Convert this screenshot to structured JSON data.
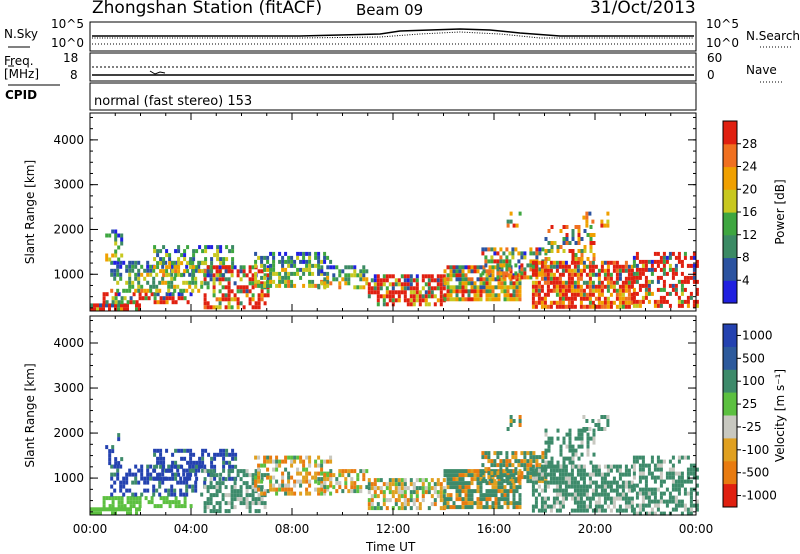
{
  "header": {
    "title": "Zhongshan Station (fitACF)",
    "beam": "Beam 09",
    "date": "31/Oct/2013"
  },
  "top_panels": {
    "nsky_label": "N.Sky",
    "nsearch_label": "N.Search",
    "noise_ticks": [
      "10^5",
      "10^0"
    ],
    "freq_label": "Freq.",
    "freq_unit": "[MHz]",
    "freq_ticks": [
      "18",
      "8"
    ],
    "nave_label": "Nave",
    "nave_ticks": [
      "60",
      "0"
    ],
    "cpid_label": "CPID",
    "cpid_text": "normal (fast stereo) 153"
  },
  "colors": {
    "power_scale": [
      "#2020e0",
      "#2b53a0",
      "#3b8a64",
      "#3ea640",
      "#c8c820",
      "#f0a000",
      "#f07020",
      "#e02010"
    ],
    "velocity_scale": [
      "#2442b0",
      "#2d5a9c",
      "#3d8a6a",
      "#5cc040",
      "#c8c8c0",
      "#e0a020",
      "#e87b10",
      "#e02010"
    ]
  },
  "chart_data": [
    {
      "type": "heatmap",
      "name": "power",
      "ylabel": "Slant Range [km]",
      "xlabel": "Time UT",
      "x_ticks": [
        "00:00",
        "04:00",
        "08:00",
        "12:00",
        "16:00",
        "20:00",
        "00:00"
      ],
      "y_ticks": [
        1000,
        2000,
        3000,
        4000
      ],
      "ylim": [
        180,
        4600
      ],
      "xlim": [
        0,
        24
      ],
      "colorbar_label": "Power [dB]",
      "colorbar_ticks": [
        "4",
        "8",
        "12",
        "16",
        "20",
        "24",
        "28"
      ],
      "colorbar_range": [
        0,
        30
      ]
    },
    {
      "type": "heatmap",
      "name": "velocity",
      "ylabel": "Slant Range [km]",
      "xlabel": "Time UT",
      "x_ticks": [
        "00:00",
        "04:00",
        "08:00",
        "12:00",
        "16:00",
        "20:00",
        "00:00"
      ],
      "y_ticks": [
        1000,
        2000,
        3000,
        4000
      ],
      "ylim": [
        180,
        4600
      ],
      "xlim": [
        0,
        24
      ],
      "colorbar_label": "Velocity [m s⁻¹]",
      "colorbar_ticks": [
        "1000",
        "500",
        "100",
        "25",
        "-25",
        "-100",
        "-500",
        "-1000"
      ]
    }
  ]
}
